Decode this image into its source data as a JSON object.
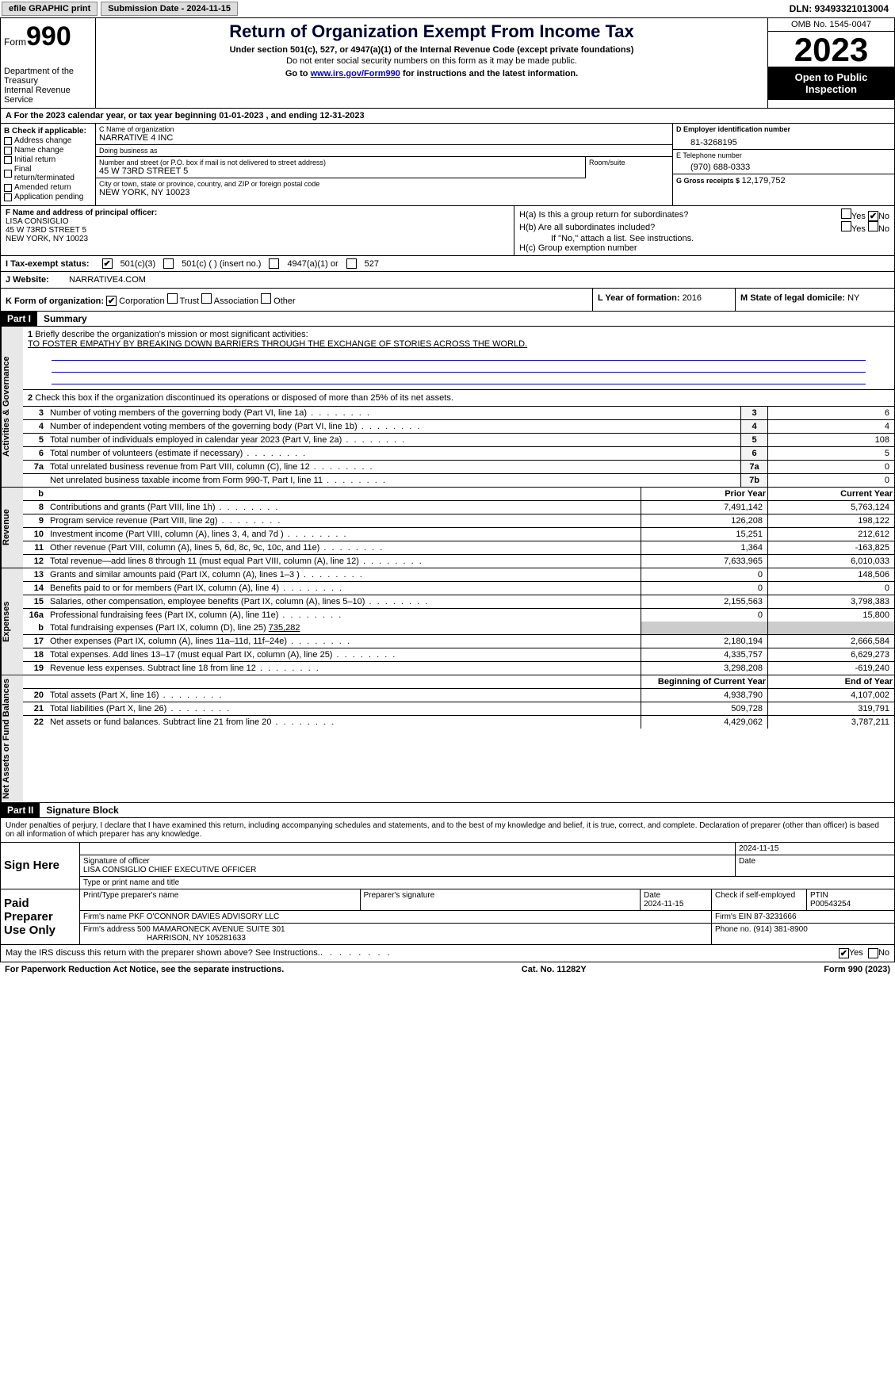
{
  "topbar": {
    "efile_label": "efile GRAPHIC print",
    "submission_label": "Submission Date - 2024-11-15",
    "dln_label": "DLN: 93493321013004"
  },
  "header": {
    "form_label": "Form",
    "form_number": "990",
    "dept": "Department of the Treasury",
    "irs": "Internal Revenue Service",
    "title": "Return of Organization Exempt From Income Tax",
    "subtitle": "Under section 501(c), 527, or 4947(a)(1) of the Internal Revenue Code (except private foundations)",
    "ssn_warning": "Do not enter social security numbers on this form as it may be made public.",
    "goto_prefix": "Go to ",
    "goto_link": "www.irs.gov/Form990",
    "goto_suffix": " for instructions and the latest information.",
    "omb": "OMB No. 1545-0047",
    "year": "2023",
    "open": "Open to Public Inspection"
  },
  "period": {
    "a_label": "A For the 2023 calendar year, or tax year beginning ",
    "begin": "01-01-2023",
    "mid": " , and ending ",
    "end": "12-31-2023"
  },
  "boxB": {
    "header": "B Check if applicable:",
    "items": [
      "Address change",
      "Name change",
      "Initial return",
      "Final return/terminated",
      "Amended return",
      "Application pending"
    ]
  },
  "boxC": {
    "name_label": "C Name of organization",
    "name": "NARRATIVE 4 INC",
    "dba_label": "Doing business as",
    "dba": "",
    "street_label": "Number and street (or P.O. box if mail is not delivered to street address)",
    "street": "45 W 73RD STREET 5",
    "suite_label": "Room/suite",
    "city_label": "City or town, state or province, country, and ZIP or foreign postal code",
    "city": "NEW YORK, NY  10023"
  },
  "boxD": {
    "ein_label": "D Employer identification number",
    "ein": "81-3268195",
    "phone_label": "E Telephone number",
    "phone": "(970) 688-0333",
    "gross_label": "G Gross receipts $ ",
    "gross": "12,179,752"
  },
  "boxF": {
    "label": "F  Name and address of principal officer:",
    "name": "LISA CONSIGLIO",
    "addr1": "45 W 73RD STREET 5",
    "addr2": "NEW YORK, NY  10023"
  },
  "boxH": {
    "a_label": "H(a)  Is this a group return for subordinates?",
    "b_label": "H(b)  Are all subordinates included?",
    "b_note": "If \"No,\" attach a list. See instructions.",
    "c_label": "H(c)  Group exemption number ",
    "yes": "Yes",
    "no": "No"
  },
  "status": {
    "i_label": "I   Tax-exempt status:",
    "c3": "501(c)(3)",
    "c_other": "501(c) (  ) (insert no.)",
    "a1": "4947(a)(1) or",
    "s527": "527"
  },
  "website": {
    "j_label": "J   Website: ",
    "url": "NARRATIVE4.COM"
  },
  "boxK": {
    "label": "K Form of organization:",
    "opts": [
      "Corporation",
      "Trust",
      "Association",
      "Other"
    ],
    "l_label": "L Year of formation: ",
    "l_val": "2016",
    "m_label": "M State of legal domicile: ",
    "m_val": "NY"
  },
  "part1": {
    "label": "Part I",
    "title": "Summary"
  },
  "summary": {
    "vtabs": [
      "Activities & Governance",
      "Revenue",
      "Expenses",
      "Net Assets or Fund Balances"
    ],
    "line1_label": "Briefly describe the organization's mission or most significant activities:",
    "mission": "TO FOSTER EMPATHY BY BREAKING DOWN BARRIERS THROUGH THE EXCHANGE OF STORIES ACROSS THE WORLD.",
    "line2_label": "Check this box      if the organization discontinued its operations or disposed of more than 25% of its net assets.",
    "gov_lines": [
      {
        "n": "3",
        "d": "Number of voting members of the governing body (Part VI, line 1a)",
        "box": "3",
        "v": "6"
      },
      {
        "n": "4",
        "d": "Number of independent voting members of the governing body (Part VI, line 1b)",
        "box": "4",
        "v": "4"
      },
      {
        "n": "5",
        "d": "Total number of individuals employed in calendar year 2023 (Part V, line 2a)",
        "box": "5",
        "v": "108"
      },
      {
        "n": "6",
        "d": "Total number of volunteers (estimate if necessary)",
        "box": "6",
        "v": "5"
      },
      {
        "n": "7a",
        "d": "Total unrelated business revenue from Part VIII, column (C), line 12",
        "box": "7a",
        "v": "0"
      },
      {
        "n": "",
        "d": "Net unrelated business taxable income from Form 990-T, Part I, line 11",
        "box": "7b",
        "v": "0"
      }
    ],
    "b_small": "b",
    "col_prior": "Prior Year",
    "col_current": "Current Year",
    "rev_lines": [
      {
        "n": "8",
        "d": "Contributions and grants (Part VIII, line 1h)",
        "p": "7,491,142",
        "c": "5,763,124"
      },
      {
        "n": "9",
        "d": "Program service revenue (Part VIII, line 2g)",
        "p": "126,208",
        "c": "198,122"
      },
      {
        "n": "10",
        "d": "Investment income (Part VIII, column (A), lines 3, 4, and 7d )",
        "p": "15,251",
        "c": "212,612"
      },
      {
        "n": "11",
        "d": "Other revenue (Part VIII, column (A), lines 5, 6d, 8c, 9c, 10c, and 11e)",
        "p": "1,364",
        "c": "-163,825"
      },
      {
        "n": "12",
        "d": "Total revenue—add lines 8 through 11 (must equal Part VIII, column (A), line 12)",
        "p": "7,633,965",
        "c": "6,010,033"
      }
    ],
    "exp_lines": [
      {
        "n": "13",
        "d": "Grants and similar amounts paid (Part IX, column (A), lines 1–3 )",
        "p": "0",
        "c": "148,506"
      },
      {
        "n": "14",
        "d": "Benefits paid to or for members (Part IX, column (A), line 4)",
        "p": "0",
        "c": "0"
      },
      {
        "n": "15",
        "d": "Salaries, other compensation, employee benefits (Part IX, column (A), lines 5–10)",
        "p": "2,155,563",
        "c": "3,798,383"
      },
      {
        "n": "16a",
        "d": "Professional fundraising fees (Part IX, column (A), line 11e)",
        "p": "0",
        "c": "15,800"
      }
    ],
    "line16b_prefix": "Total fundraising expenses (Part IX, column (D), line 25) ",
    "line16b_val": "735,282",
    "exp_lines2": [
      {
        "n": "17",
        "d": "Other expenses (Part IX, column (A), lines 11a–11d, 11f–24e)",
        "p": "2,180,194",
        "c": "2,666,584"
      },
      {
        "n": "18",
        "d": "Total expenses. Add lines 13–17 (must equal Part IX, column (A), line 25)",
        "p": "4,335,757",
        "c": "6,629,273"
      },
      {
        "n": "19",
        "d": "Revenue less expenses. Subtract line 18 from line 12",
        "p": "3,298,208",
        "c": "-619,240"
      }
    ],
    "col_begin": "Beginning of Current Year",
    "col_end": "End of Year",
    "na_lines": [
      {
        "n": "20",
        "d": "Total assets (Part X, line 16)",
        "p": "4,938,790",
        "c": "4,107,002"
      },
      {
        "n": "21",
        "d": "Total liabilities (Part X, line 26)",
        "p": "509,728",
        "c": "319,791"
      },
      {
        "n": "22",
        "d": "Net assets or fund balances. Subtract line 21 from line 20",
        "p": "4,429,062",
        "c": "3,787,211"
      }
    ]
  },
  "part2": {
    "label": "Part II",
    "title": "Signature Block"
  },
  "decl": "Under penalties of perjury, I declare that I have examined this return, including accompanying schedules and statements, and to the best of my knowledge and belief, it is true, correct, and complete. Declaration of preparer (other than officer) is based on all information of which preparer has any knowledge.",
  "sign": {
    "here": "Sign Here",
    "date": "2024-11-15",
    "sig_of_officer": "Signature of officer",
    "officer_name": "LISA CONSIGLIO CHIEF EXECUTIVE OFFICER",
    "name_title_label": "Type or print name and title",
    "date_label": "Date"
  },
  "paid": {
    "label": "Paid Preparer Use Only",
    "print_name_label": "Print/Type preparer's name",
    "prep_sig_label": "Preparer's signature",
    "date_label": "Date",
    "date": "2024-11-15",
    "check_label": "Check      if self-employed",
    "ptin_label": "PTIN",
    "ptin": "P00543254",
    "firm_name_label": "Firm's name   ",
    "firm_name": "PKF O'CONNOR DAVIES ADVISORY LLC",
    "firm_ein_label": "Firm's EIN  ",
    "firm_ein": "87-3231666",
    "firm_addr_label": "Firm's address ",
    "firm_addr1": "500 MAMARONECK AVENUE SUITE 301",
    "firm_addr2": "HARRISON, NY  105281633",
    "phone_label": "Phone no. ",
    "phone": "(914) 381-8900"
  },
  "discuss": {
    "label": "May the IRS discuss this return with the preparer shown above? See Instructions.",
    "yes": "Yes",
    "no": "No"
  },
  "footer": {
    "left": "For Paperwork Reduction Act Notice, see the separate instructions.",
    "mid": "Cat. No. 11282Y",
    "right_prefix": "Form ",
    "right_form": "990",
    "right_suffix": " (2023)"
  }
}
